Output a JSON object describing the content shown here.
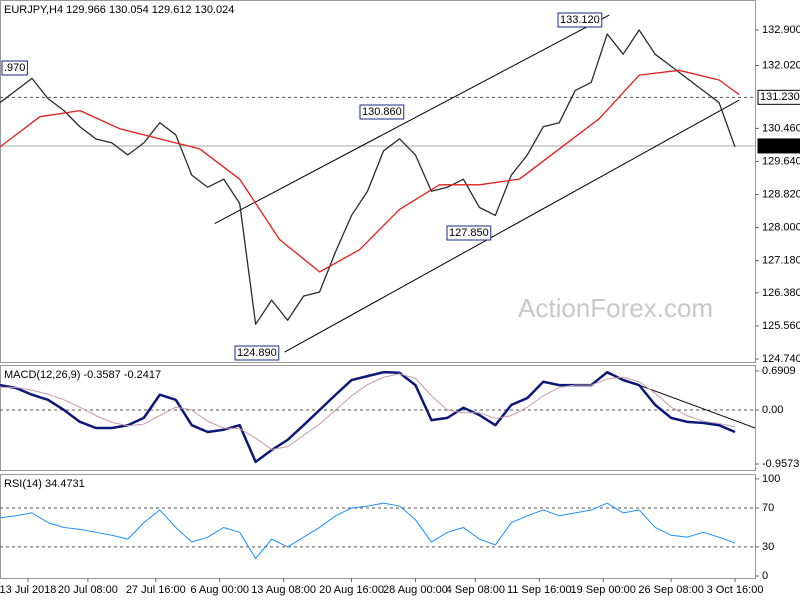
{
  "chart_data": [
    {
      "type": "line",
      "title": "EURJPY,H4  129.966 130.054 129.612 130.024",
      "x": [
        0,
        4,
        8,
        12,
        16,
        20,
        24,
        28,
        32,
        36,
        40,
        44,
        48,
        52,
        56,
        60,
        64,
        68,
        72,
        76,
        80,
        84,
        88,
        92,
        96,
        100,
        104,
        108,
        112,
        116,
        120,
        124,
        128,
        132,
        136,
        140,
        144,
        148,
        152,
        156,
        160,
        164,
        168,
        172,
        176,
        180,
        184
      ],
      "xlim": [
        0,
        189
      ],
      "ylim": [
        124.665,
        133.644
      ],
      "yticks": [
        {
          "value": 132.9,
          "label": "132.900"
        },
        {
          "value": 132.02,
          "label": "132.020"
        },
        {
          "value": 130.46,
          "label": "130.460"
        },
        {
          "value": 129.64,
          "label": "129.640"
        },
        {
          "value": 128.82,
          "label": "128.820"
        },
        {
          "value": 128,
          "label": "128.000"
        },
        {
          "value": 127.18,
          "label": "127.180"
        },
        {
          "value": 126.38,
          "label": "126.380"
        },
        {
          "value": 125.56,
          "label": "125.560"
        },
        {
          "value": 124.74,
          "label": "124.740"
        }
      ],
      "series": [
        {
          "color": "#2b2b2b",
          "values": [
            131.1,
            131.4,
            131.7,
            131.2,
            130.9,
            130.5,
            130.2,
            130.1,
            129.8,
            130.1,
            130.6,
            130.3,
            129.3,
            129.0,
            129.2,
            128.6,
            125.6,
            126.2,
            125.7,
            126.3,
            126.4,
            127.4,
            128.3,
            128.9,
            129.9,
            130.2,
            129.8,
            128.9,
            129.0,
            129.2,
            128.5,
            128.3,
            129.3,
            129.8,
            130.5,
            130.6,
            131.4,
            131.6,
            132.8,
            132.3,
            132.9,
            132.3,
            132.0,
            131.7,
            131.4,
            131.1,
            130.0
          ]
        },
        {
          "color": "#e0201b",
          "x": [
            0,
            10,
            20,
            30,
            40,
            50,
            60,
            70,
            80,
            90,
            100,
            110,
            120,
            130,
            140,
            150,
            160,
            170,
            180,
            185
          ],
          "values": [
            130.0,
            130.75,
            130.9,
            130.45,
            130.2,
            129.95,
            129.2,
            127.7,
            126.9,
            127.45,
            128.45,
            129.06,
            129.06,
            129.2,
            129.95,
            130.7,
            131.78,
            131.9,
            131.66,
            131.3
          ]
        }
      ],
      "levels": [
        {
          "value": 131.23,
          "label": "131.230",
          "style": "dashed"
        },
        {
          "value": 130.024,
          "label": "130.024",
          "style": "solid"
        }
      ],
      "trendlines": [
        {
          "x": [
            53.75,
            152.5
          ],
          "y": [
            128.1,
            133.27
          ]
        },
        {
          "x": [
            71.25,
            185
          ],
          "y": [
            124.91,
            131.16
          ]
        }
      ],
      "annotations": [
        ".970",
        "130.860",
        "133.120",
        "127.850",
        "124.890"
      ],
      "watermark": "ActionForex.com"
    },
    {
      "type": "line",
      "title": "MACD(12,26,9) -0.3587 -0.2417",
      "x": [
        0,
        4,
        8,
        12,
        16,
        20,
        24,
        28,
        32,
        36,
        40,
        44,
        48,
        52,
        56,
        60,
        64,
        68,
        72,
        76,
        80,
        84,
        88,
        92,
        96,
        100,
        104,
        108,
        112,
        116,
        120,
        124,
        128,
        132,
        136,
        140,
        144,
        148,
        152,
        156,
        160,
        164,
        168,
        172,
        176,
        180,
        184
      ],
      "xlim": [
        0,
        189
      ],
      "ylim": [
        -1.064,
        0.797
      ],
      "yticks": [
        0.6909,
        {
          "value": 0,
          "label": "0.00"
        },
        -0.9573
      ],
      "series": [
        {
          "color": "#0b1877",
          "width": 2.5,
          "values": [
            0.44,
            0.39,
            0.27,
            0.18,
            0,
            -0.21,
            -0.32,
            -0.32,
            -0.27,
            -0.14,
            0.27,
            0.18,
            -0.27,
            -0.39,
            -0.35,
            -0.27,
            -0.92,
            -0.71,
            -0.53,
            -0.27,
            0,
            0.27,
            0.53,
            0.6,
            0.67,
            0.66,
            0.44,
            -0.18,
            -0.14,
            0.04,
            -0.09,
            -0.27,
            0.09,
            0.21,
            0.5,
            0.44,
            0.44,
            0.44,
            0.67,
            0.53,
            0.44,
            0.09,
            -0.14,
            -0.21,
            -0.23,
            -0.27,
            -0.39
          ]
        },
        {
          "color": "#c79aa6",
          "width": 1,
          "values": [
            0.4,
            0.4,
            0.35,
            0.28,
            0.18,
            0.05,
            -0.1,
            -0.22,
            -0.28,
            -0.25,
            -0.1,
            0.05,
            0,
            -0.2,
            -0.32,
            -0.33,
            -0.5,
            -0.7,
            -0.65,
            -0.45,
            -0.25,
            0,
            0.25,
            0.45,
            0.58,
            0.64,
            0.56,
            0.25,
            0,
            -0.05,
            -0.05,
            -0.15,
            -0.1,
            0.05,
            0.25,
            0.4,
            0.44,
            0.44,
            0.55,
            0.58,
            0.5,
            0.3,
            0.05,
            -0.1,
            -0.2,
            -0.24,
            -0.3
          ]
        }
      ],
      "levels": [
        0
      ],
      "trendlines": [
        {
          "x": [
            151.75,
            189
          ],
          "y": [
            0.655,
            -0.319
          ]
        }
      ]
    },
    {
      "type": "line",
      "title": "RSI(14) 34.4731",
      "x": [
        0,
        4,
        8,
        12,
        16,
        20,
        24,
        28,
        32,
        36,
        40,
        44,
        48,
        52,
        56,
        60,
        64,
        68,
        72,
        76,
        80,
        84,
        88,
        92,
        96,
        100,
        104,
        108,
        112,
        116,
        120,
        124,
        128,
        132,
        136,
        140,
        144,
        148,
        152,
        156,
        160,
        164,
        168,
        172,
        176,
        180,
        184
      ],
      "xlim": [
        0,
        189
      ],
      "ylim": [
        -2,
        105
      ],
      "yticks": [
        100,
        70,
        30,
        0
      ],
      "series": [
        {
          "color": "#1e90ff",
          "width": 1,
          "values": [
            60,
            62,
            65,
            55,
            50,
            48,
            45,
            42,
            38,
            55,
            68,
            50,
            35,
            40,
            50,
            45,
            18,
            38,
            30,
            40,
            50,
            62,
            70,
            72,
            75,
            72,
            58,
            35,
            45,
            50,
            38,
            32,
            55,
            62,
            68,
            62,
            65,
            68,
            75,
            65,
            68,
            50,
            42,
            40,
            45,
            40,
            34
          ]
        }
      ],
      "levels": [
        70,
        30
      ],
      "xticks": [
        {
          "value": 7,
          "label": "13 Jul 2018"
        },
        {
          "value": 22,
          "label": "20 Jul 08:00"
        },
        {
          "value": 39,
          "label": "27 Jul 16:00"
        },
        {
          "value": 55,
          "label": "6 Aug 00:00"
        },
        {
          "value": 71,
          "label": "13 Aug 08:00"
        },
        {
          "value": 88,
          "label": "20 Aug 16:00"
        },
        {
          "value": 104,
          "label": "28 Aug 00:00"
        },
        {
          "value": 119,
          "label": "4 Sep 08:00"
        },
        {
          "value": 135,
          "label": "11 Sep 16:00"
        },
        {
          "value": 151,
          "label": "19 Sep 00:00"
        },
        {
          "value": 168,
          "label": "26 Sep 08:00"
        },
        {
          "value": 184,
          "label": "3 Oct 16:00"
        }
      ]
    }
  ]
}
